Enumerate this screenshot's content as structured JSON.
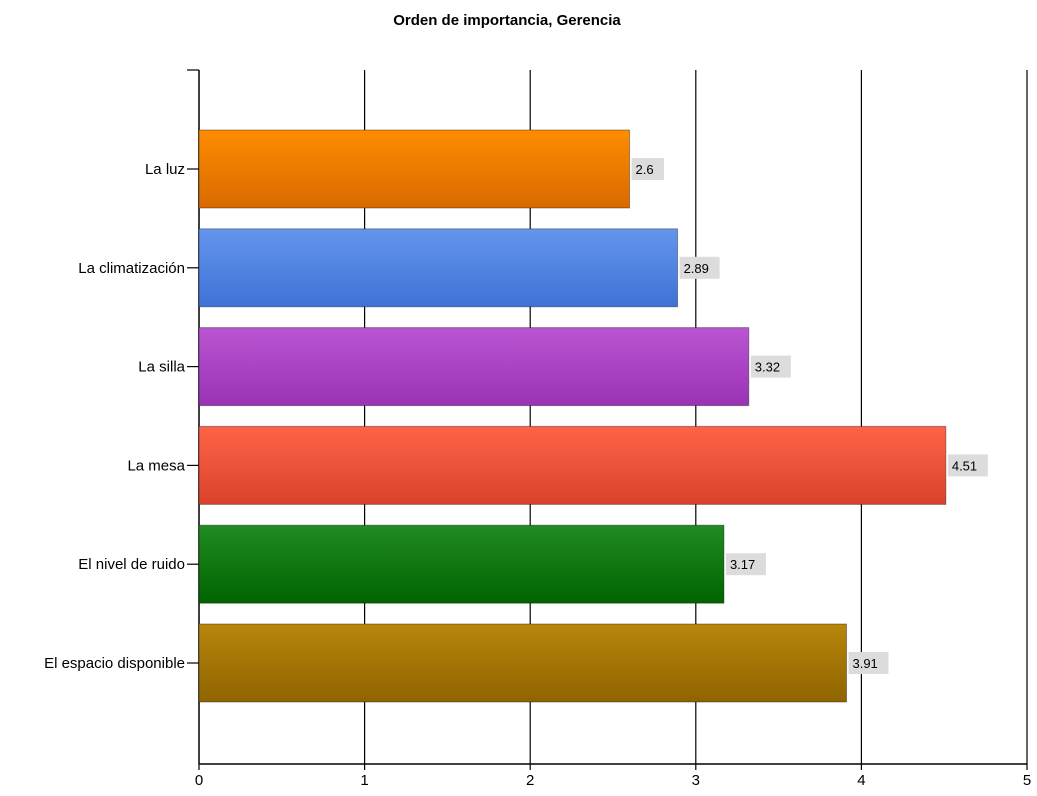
{
  "chart_data": {
    "type": "bar",
    "orientation": "horizontal",
    "title": "Orden de importancia, Gerencia",
    "xlabel": "",
    "ylabel": "",
    "xlim": [
      0,
      5
    ],
    "x_ticks": [
      "0",
      "1",
      "2",
      "3",
      "4",
      "5"
    ],
    "grid": "vertical",
    "legend": "none",
    "categories": [
      "La luz",
      "La climatización",
      "La silla",
      "La mesa",
      "El nivel de ruido",
      "El espacio disponible"
    ],
    "values": [
      2.6,
      2.89,
      3.32,
      4.51,
      3.17,
      3.91
    ],
    "value_labels": [
      "2.6",
      "2.89",
      "3.32",
      "4.51",
      "3.17",
      "3.91"
    ],
    "colors": [
      [
        "#ff8c00",
        "#d96a00"
      ],
      [
        "#6495ed",
        "#3f72d6"
      ],
      [
        "#ba55d3",
        "#9a32b4"
      ],
      [
        "#ff6347",
        "#d9432a"
      ],
      [
        "#228b22",
        "#006400"
      ],
      [
        "#b8860b",
        "#8f6400"
      ]
    ]
  }
}
